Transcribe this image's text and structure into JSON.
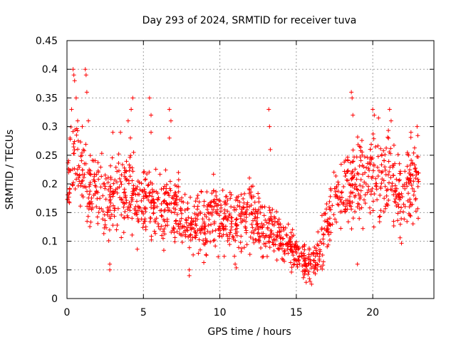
{
  "chart_data": {
    "type": "scatter",
    "title": "Day 293 of 2024, SRMTID for receiver tuva",
    "xlabel": "GPS time / hours",
    "ylabel": "SRMTID / TECUs",
    "xlim": [
      0,
      24
    ],
    "ylim": [
      0,
      0.45
    ],
    "xticks": [
      0,
      5,
      10,
      15,
      20
    ],
    "yticks": [
      0,
      0.05,
      0.1,
      0.15,
      0.2,
      0.25,
      0.3,
      0.35,
      0.4,
      0.45
    ],
    "grid": true,
    "marker": "+",
    "series": [
      {
        "name": "SRMTID",
        "color": "#ff0000",
        "x_range": [
          0,
          23
        ],
        "trend": [
          [
            0.0,
            0.2
          ],
          [
            0.5,
            0.24
          ],
          [
            1.0,
            0.23
          ],
          [
            1.5,
            0.2
          ],
          [
            2.0,
            0.18
          ],
          [
            2.5,
            0.17
          ],
          [
            3.0,
            0.17
          ],
          [
            3.5,
            0.18
          ],
          [
            4.0,
            0.19
          ],
          [
            4.5,
            0.16
          ],
          [
            5.0,
            0.17
          ],
          [
            5.5,
            0.16
          ],
          [
            6.0,
            0.15
          ],
          [
            6.5,
            0.17
          ],
          [
            7.0,
            0.16
          ],
          [
            7.5,
            0.14
          ],
          [
            8.0,
            0.13
          ],
          [
            8.5,
            0.13
          ],
          [
            9.0,
            0.13
          ],
          [
            9.5,
            0.15
          ],
          [
            10.0,
            0.14
          ],
          [
            10.5,
            0.13
          ],
          [
            11.0,
            0.13
          ],
          [
            11.5,
            0.14
          ],
          [
            12.0,
            0.15
          ],
          [
            12.5,
            0.13
          ],
          [
            13.0,
            0.12
          ],
          [
            13.5,
            0.12
          ],
          [
            14.0,
            0.1
          ],
          [
            14.5,
            0.09
          ],
          [
            15.0,
            0.08
          ],
          [
            15.5,
            0.06
          ],
          [
            16.0,
            0.06
          ],
          [
            16.5,
            0.08
          ],
          [
            17.0,
            0.12
          ],
          [
            17.5,
            0.17
          ],
          [
            18.0,
            0.18
          ],
          [
            18.5,
            0.2
          ],
          [
            19.0,
            0.21
          ],
          [
            19.5,
            0.22
          ],
          [
            20.0,
            0.22
          ],
          [
            20.5,
            0.22
          ],
          [
            21.0,
            0.21
          ],
          [
            21.5,
            0.19
          ],
          [
            22.0,
            0.18
          ],
          [
            22.5,
            0.2
          ],
          [
            23.0,
            0.21
          ]
        ],
        "spread": [
          [
            0.0,
            0.05
          ],
          [
            2.0,
            0.06
          ],
          [
            5.0,
            0.05
          ],
          [
            8.0,
            0.04
          ],
          [
            12.0,
            0.05
          ],
          [
            14.0,
            0.03
          ],
          [
            16.0,
            0.02
          ],
          [
            17.0,
            0.04
          ],
          [
            19.0,
            0.06
          ],
          [
            23.0,
            0.06
          ]
        ],
        "highlights": [
          [
            0.2,
            0.28
          ],
          [
            0.3,
            0.33
          ],
          [
            0.4,
            0.4
          ],
          [
            0.45,
            0.39
          ],
          [
            0.5,
            0.38
          ],
          [
            0.6,
            0.35
          ],
          [
            0.7,
            0.31
          ],
          [
            1.0,
            0.3
          ],
          [
            1.2,
            0.4
          ],
          [
            1.25,
            0.39
          ],
          [
            1.3,
            0.36
          ],
          [
            1.4,
            0.31
          ],
          [
            3.0,
            0.29
          ],
          [
            3.5,
            0.29
          ],
          [
            4.0,
            0.31
          ],
          [
            4.2,
            0.33
          ],
          [
            4.3,
            0.35
          ],
          [
            5.4,
            0.35
          ],
          [
            5.5,
            0.32
          ],
          [
            5.5,
            0.29
          ],
          [
            6.7,
            0.33
          ],
          [
            6.8,
            0.31
          ],
          [
            6.7,
            0.28
          ],
          [
            13.2,
            0.33
          ],
          [
            13.25,
            0.3
          ],
          [
            13.3,
            0.26
          ],
          [
            18.6,
            0.36
          ],
          [
            18.7,
            0.32
          ],
          [
            18.65,
            0.35
          ],
          [
            20.0,
            0.33
          ],
          [
            20.1,
            0.32
          ],
          [
            21.1,
            0.33
          ],
          [
            21.2,
            0.31
          ],
          [
            22.5,
            0.29
          ],
          [
            22.9,
            0.3
          ],
          [
            15.9,
            0.03
          ],
          [
            16.0,
            0.025
          ],
          [
            2.8,
            0.06
          ],
          [
            2.8,
            0.05
          ],
          [
            8.0,
            0.04
          ],
          [
            8.0,
            0.05
          ],
          [
            19.0,
            0.06
          ],
          [
            11.0,
            0.06
          ]
        ]
      }
    ]
  }
}
